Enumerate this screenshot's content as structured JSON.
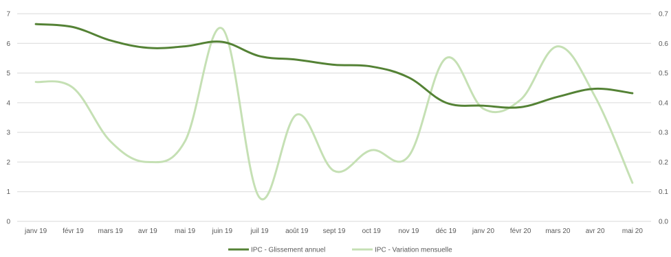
{
  "chart_data": {
    "type": "line",
    "categories": [
      "janv 19",
      "févr 19",
      "mars 19",
      "avr 19",
      "mai 19",
      "juin 19",
      "juil 19",
      "août 19",
      "sept 19",
      "oct 19",
      "nov 19",
      "déc 19",
      "janv 20",
      "févr 20",
      "mars 20",
      "avr 20",
      "mai 20"
    ],
    "series": [
      {
        "name": "IPC - Glissement annuel",
        "axis": "left",
        "color": "#548235",
        "values": [
          6.65,
          6.55,
          6.1,
          5.85,
          5.9,
          6.05,
          5.57,
          5.45,
          5.28,
          5.22,
          4.85,
          4.0,
          3.9,
          3.85,
          4.2,
          4.47,
          4.32
        ]
      },
      {
        "name": "IPC - Variation mensuelle",
        "axis": "right",
        "color": "#c5e0b4",
        "values": [
          0.47,
          0.45,
          0.27,
          0.2,
          0.27,
          0.65,
          0.08,
          0.36,
          0.17,
          0.24,
          0.22,
          0.55,
          0.38,
          0.41,
          0.59,
          0.42,
          0.13
        ]
      }
    ],
    "y_left": {
      "min": 0,
      "max": 7,
      "ticks": [
        "0",
        "1",
        "2",
        "3",
        "4",
        "5",
        "6",
        "7"
      ]
    },
    "y_right": {
      "min": 0,
      "max": 0.7,
      "ticks": [
        "0.0",
        "0.1",
        "0.2",
        "0.3",
        "0.4",
        "0.5",
        "0.6",
        "0.7"
      ]
    },
    "grid": true,
    "legend": "bottom",
    "colors": {
      "grid": "#d9d9d9",
      "text": "#595959"
    }
  }
}
